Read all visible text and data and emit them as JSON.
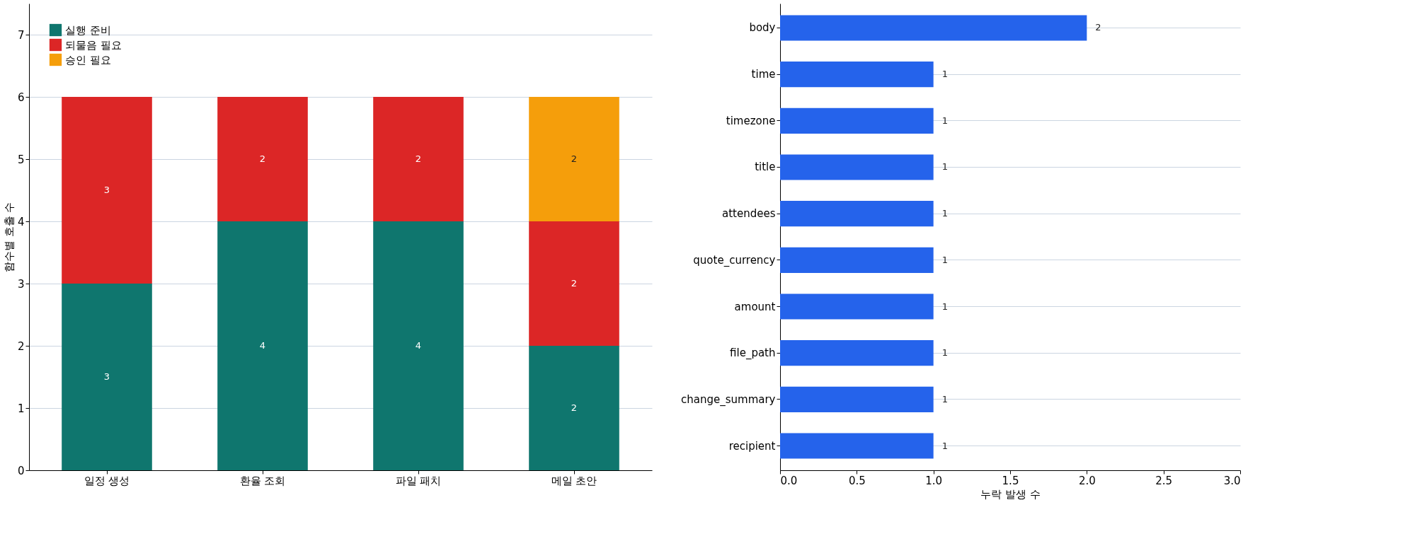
{
  "chart_data": [
    {
      "type": "bar",
      "stacked": true,
      "categories": [
        "일정 생성",
        "환율 조회",
        "파일 패치",
        "메일 초안"
      ],
      "ylabel": "함수별 호출 수",
      "ylim": [
        0,
        7.5
      ],
      "yticks": [
        0,
        1,
        2,
        3,
        4,
        5,
        6,
        7
      ],
      "grid": "y",
      "legend": "top left",
      "series": [
        {
          "name": "실행 준비",
          "color": "#0f766e",
          "values": [
            3,
            4,
            4,
            2
          ],
          "value_labels": [
            "3",
            "4",
            "4",
            "2"
          ]
        },
        {
          "name": "되물음 필요",
          "color": "#dc2626",
          "values": [
            3,
            2,
            2,
            2
          ],
          "value_labels": [
            "3",
            "2",
            "2",
            "2"
          ]
        },
        {
          "name": "승인 필요",
          "color": "#f59e0b",
          "values": [
            0,
            0,
            0,
            2
          ],
          "value_labels": [
            null,
            null,
            null,
            "2"
          ]
        }
      ]
    },
    {
      "type": "bar",
      "orientation": "horizontal",
      "categories": [
        "body",
        "time",
        "timezone",
        "title",
        "attendees",
        "quote_currency",
        "amount",
        "file_path",
        "change_summary",
        "recipient"
      ],
      "values": [
        2,
        1,
        1,
        1,
        1,
        1,
        1,
        1,
        1,
        1
      ],
      "color": "#2563eb",
      "xlabel": "누락 발생 수",
      "xlim": [
        0,
        3
      ],
      "xticks": [
        {
          "value": 0,
          "label": "0.0"
        },
        {
          "value": 0.5,
          "label": "0.5"
        },
        {
          "value": 1,
          "label": "1.0"
        },
        {
          "value": 1.5,
          "label": "1.5"
        },
        {
          "value": 2,
          "label": "2.0"
        },
        {
          "value": 2.5,
          "label": "2.5"
        },
        {
          "value": 3,
          "label": "3.0"
        }
      ],
      "grid": "y",
      "data_labels": true
    }
  ]
}
